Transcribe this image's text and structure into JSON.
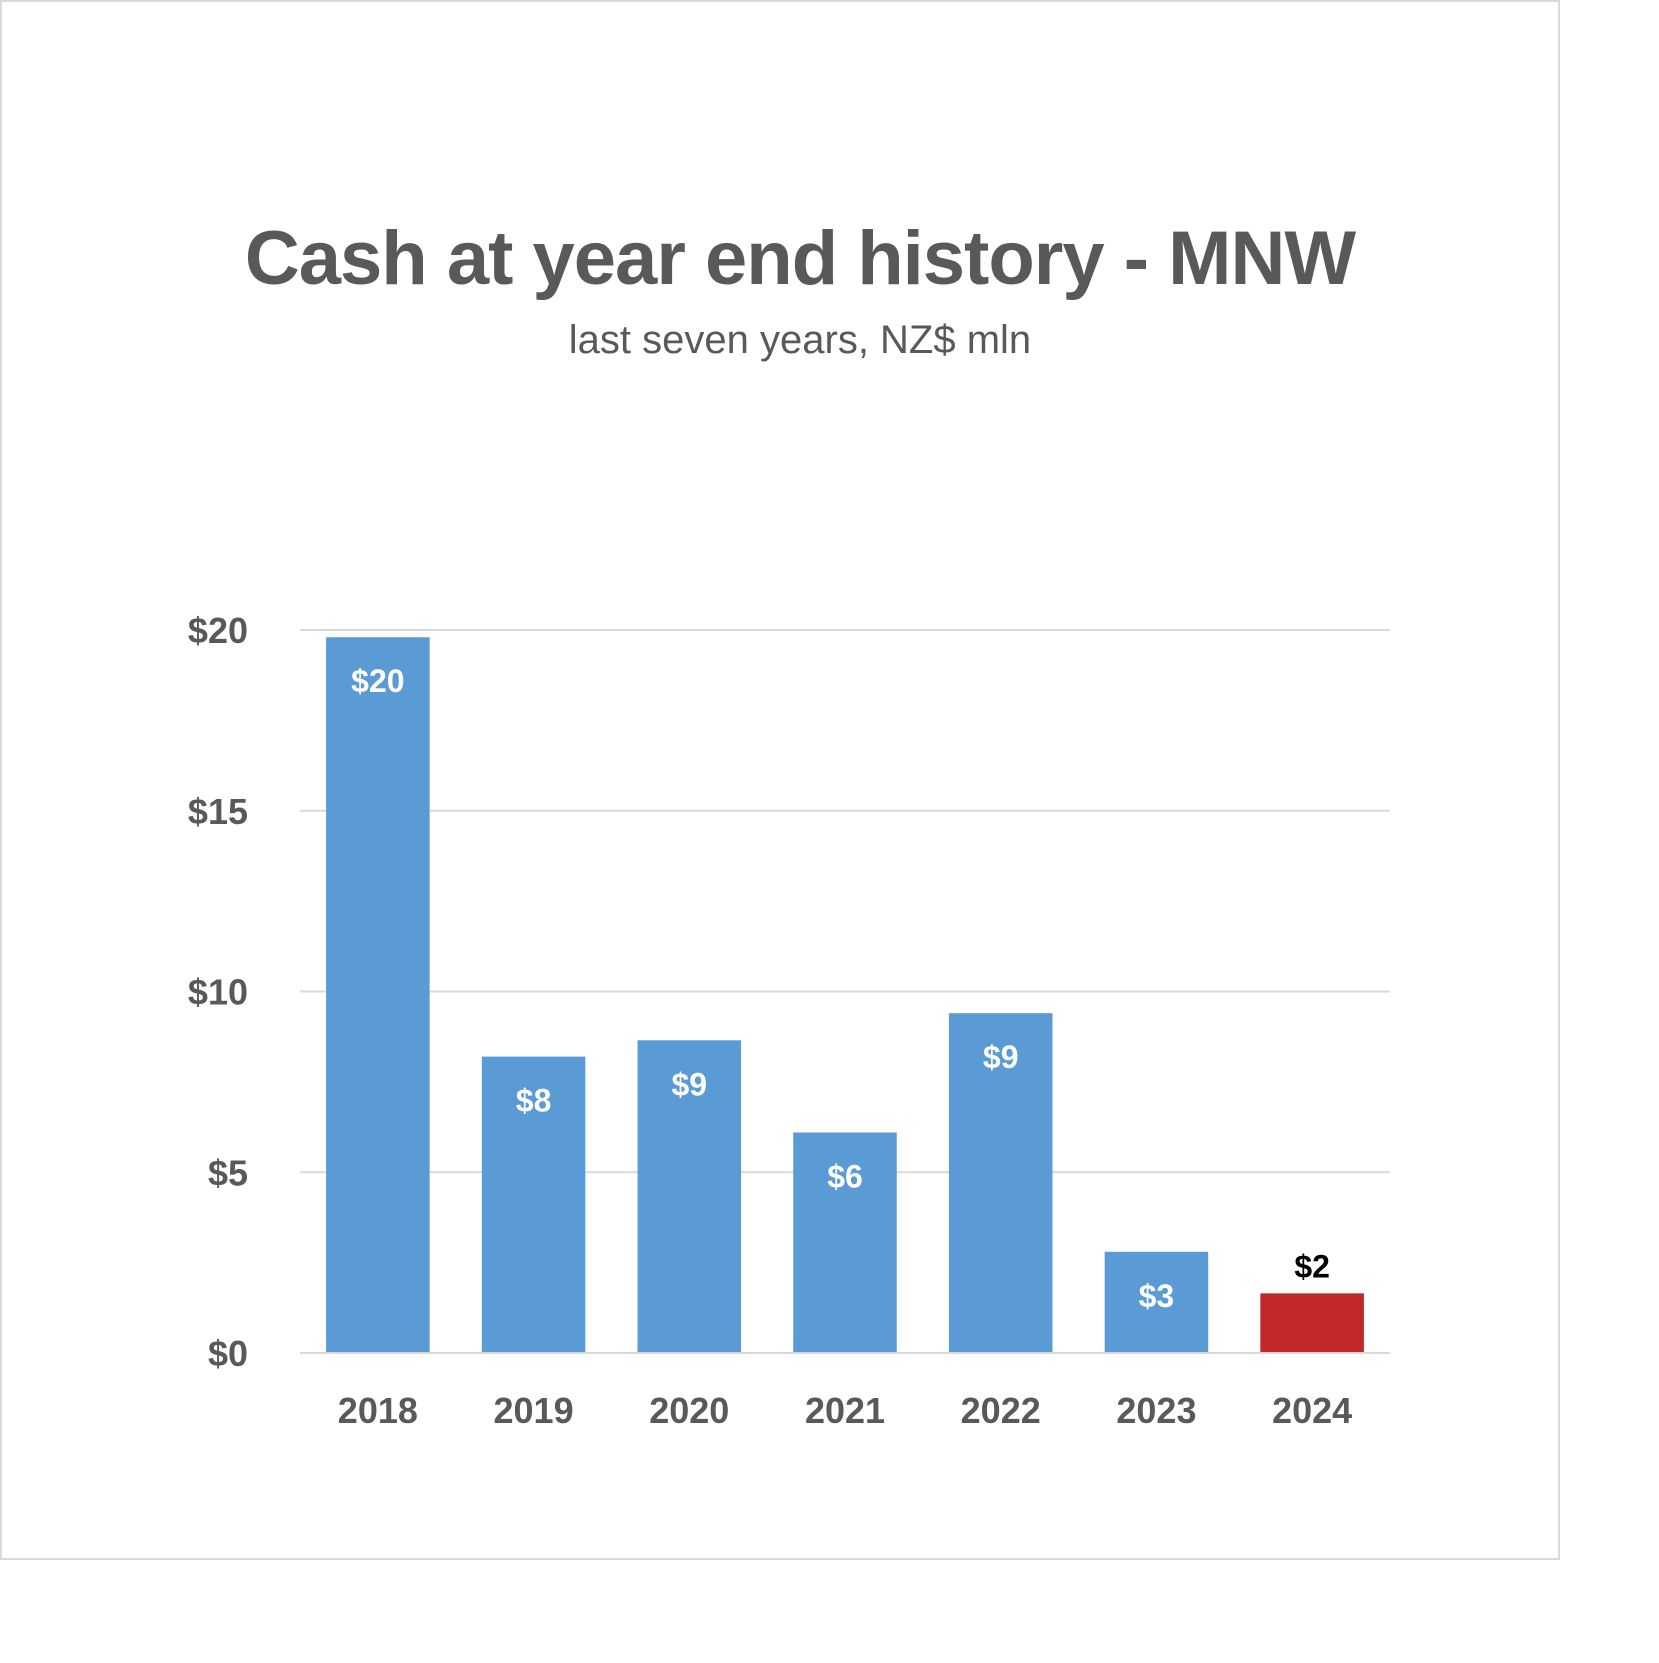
{
  "chart_data": {
    "type": "bar",
    "title": "Cash at year end history - MNW",
    "subtitle": "last seven years, NZ$ mln",
    "xlabel": "",
    "ylabel": "",
    "categories": [
      "2018",
      "2019",
      "2020",
      "2021",
      "2022",
      "2023",
      "2024"
    ],
    "values": [
      19.8,
      8.2,
      8.65,
      6.1,
      9.4,
      2.8,
      1.65
    ],
    "data_labels": [
      "$20",
      "$8",
      "$9",
      "$6",
      "$9",
      "$3",
      "$2"
    ],
    "ylim": [
      0,
      20
    ],
    "yticks": [
      0,
      5,
      10,
      15,
      20
    ],
    "ytick_labels": [
      "$0",
      "$5",
      "$10",
      "$15",
      "$20"
    ],
    "grid": true,
    "legend": "none",
    "colors": {
      "bar": "#5b9bd5",
      "highlight_bar": "#c0282a",
      "text": "#595959",
      "grid": "#d9d9d9"
    },
    "highlight_index": 6
  }
}
